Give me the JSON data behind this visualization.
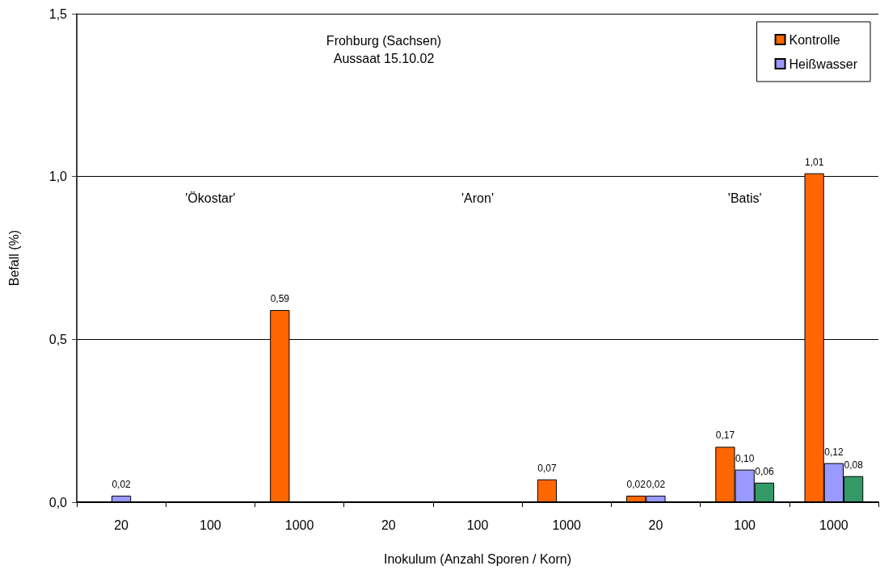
{
  "chart_data": {
    "type": "bar",
    "title": "Frohburg (Sachsen)",
    "subtitle": "Aussaat 15.10.02",
    "xlabel": "Inokulum (Anzahl Sporen / Korn)",
    "ylabel": "Befall (%)",
    "annotations": [
      "'Ökostar'",
      "'Aron'",
      "'Batis'"
    ],
    "categories": [
      "20",
      "100",
      "1000",
      "20",
      "100",
      "1000",
      "20",
      "100",
      "1000"
    ],
    "series": [
      {
        "name": "Kontrolle",
        "color": "#ff6600",
        "values": [
          null,
          null,
          0.59,
          null,
          null,
          0.07,
          0.02,
          0.17,
          1.01
        ],
        "value_labels": [
          null,
          null,
          "0,59",
          null,
          null,
          "0,07",
          "0,02",
          "0,17",
          "1,01"
        ]
      },
      {
        "name": "Heißwasser",
        "color": "#9999ff",
        "values": [
          0.02,
          null,
          null,
          null,
          null,
          null,
          0.02,
          0.1,
          0.12
        ],
        "value_labels": [
          "0,02",
          null,
          null,
          null,
          null,
          null,
          "0,02",
          "0,10",
          "0,12"
        ]
      },
      {
        "color": "#339966",
        "values": [
          null,
          null,
          null,
          null,
          null,
          null,
          null,
          0.06,
          0.08
        ],
        "value_labels": [
          null,
          null,
          null,
          null,
          null,
          null,
          null,
          "0,06",
          "0,08"
        ]
      }
    ],
    "ylim": [
      0,
      1.5
    ],
    "yticks": [
      {
        "value": 0,
        "label": "0,0"
      },
      {
        "value": 0.5,
        "label": "0,5"
      },
      {
        "value": 1,
        "label": "1,0"
      },
      {
        "value": 1.5,
        "label": "1,5"
      }
    ],
    "grid": "y",
    "legend": "top right"
  }
}
